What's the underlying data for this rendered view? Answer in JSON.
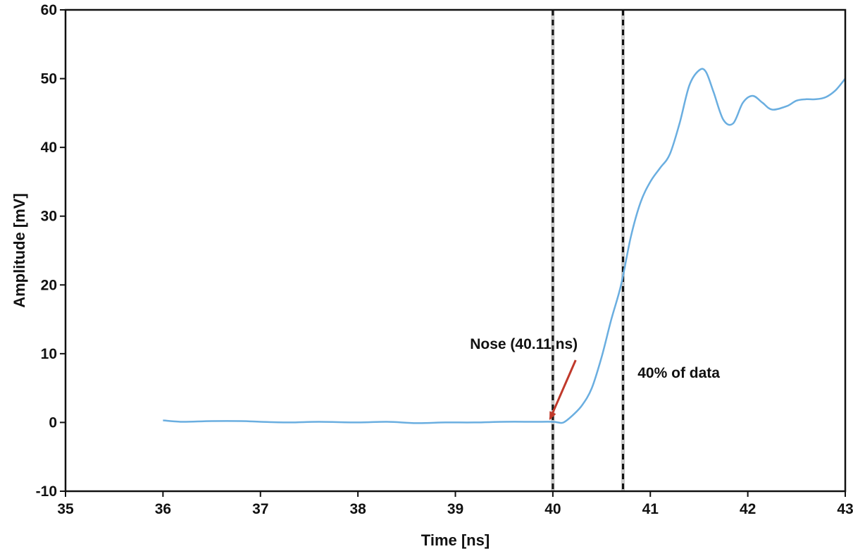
{
  "chart_data": {
    "type": "line",
    "title": "",
    "xlabel": "Time [ns]",
    "ylabel": "Amplitude [mV]",
    "xlim": [
      35,
      43
    ],
    "ylim": [
      -10,
      60
    ],
    "x_ticks": [
      35,
      36,
      37,
      38,
      39,
      40,
      41,
      42,
      43
    ],
    "y_ticks": [
      -10,
      0,
      10,
      20,
      30,
      40,
      50,
      60
    ],
    "grid": false,
    "line_color": "#6aaee0",
    "series": [
      {
        "color": "#6aaee0",
        "x": [
          36.0,
          36.2,
          36.5,
          36.8,
          37.0,
          37.3,
          37.6,
          38.0,
          38.3,
          38.6,
          38.9,
          39.2,
          39.5,
          39.8,
          40.0,
          40.05,
          40.11,
          40.2,
          40.3,
          40.4,
          40.5,
          40.6,
          40.7,
          40.8,
          40.9,
          41.0,
          41.1,
          41.2,
          41.3,
          41.4,
          41.5,
          41.57,
          41.65,
          41.75,
          41.85,
          41.95,
          42.05,
          42.15,
          42.25,
          42.4,
          42.5,
          42.6,
          42.7,
          42.8,
          42.9,
          43.0
        ],
        "y": [
          0.3,
          0.1,
          0.2,
          0.2,
          0.1,
          0.0,
          0.1,
          0.0,
          0.1,
          -0.1,
          0.0,
          0.0,
          0.1,
          0.1,
          0.1,
          0.0,
          0.0,
          1.0,
          2.5,
          5.0,
          9.5,
          15.0,
          20.0,
          27.0,
          32.0,
          35.0,
          37.0,
          39.0,
          43.5,
          49.0,
          51.2,
          51.0,
          48.0,
          44.0,
          43.5,
          46.5,
          47.5,
          46.5,
          45.5,
          46.0,
          46.8,
          47.0,
          47.0,
          47.3,
          48.3,
          50.0
        ]
      }
    ],
    "vlines": [
      {
        "x": 40.0,
        "style": "dashed",
        "color": "#111111"
      },
      {
        "x": 40.72,
        "style": "dashed",
        "color": "#111111"
      }
    ],
    "annotations": [
      {
        "text": "Nose (40.11 ns)",
        "text_x": 39.15,
        "text_y": 10.7,
        "arrow_to_x": 40.0,
        "arrow_to_y": 0.1,
        "arrow_color": "#c0392b"
      },
      {
        "text": "40% of data",
        "text_x": 40.87,
        "text_y": 6.5
      }
    ]
  }
}
